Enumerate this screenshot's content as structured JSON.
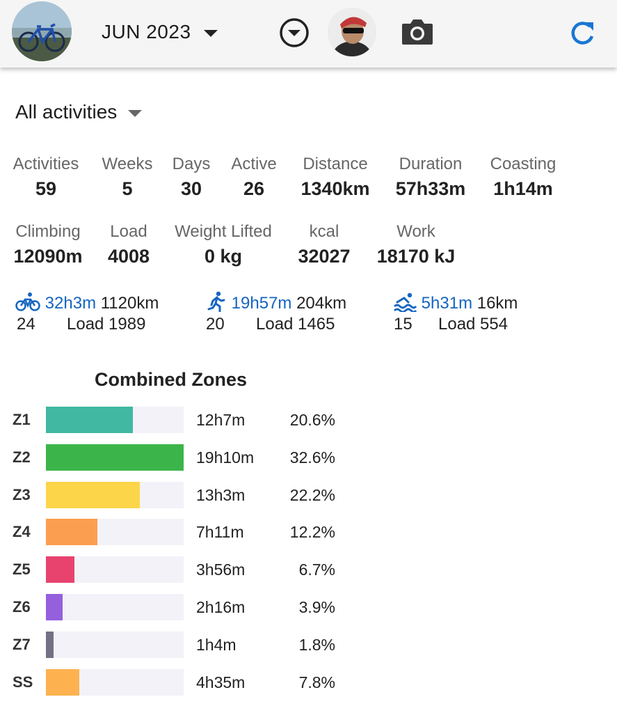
{
  "header": {
    "month_label": "JUN 2023"
  },
  "filter": {
    "label": "All activities"
  },
  "stats_row1": [
    {
      "label": "Activities",
      "value": "59"
    },
    {
      "label": "Weeks",
      "value": "5"
    },
    {
      "label": "Days",
      "value": "30"
    },
    {
      "label": "Active",
      "value": "26"
    },
    {
      "label": "Distance",
      "value": "1340km"
    },
    {
      "label": "Duration",
      "value": "57h33m"
    },
    {
      "label": "Coasting",
      "value": "1h14m"
    }
  ],
  "stats_row2": [
    {
      "label": "Climbing",
      "value": "12090m"
    },
    {
      "label": "Load",
      "value": "4008"
    },
    {
      "label": "Weight Lifted",
      "value": "0 kg"
    },
    {
      "label": "kcal",
      "value": "32027"
    },
    {
      "label": "Work",
      "value": "18170 kJ"
    }
  ],
  "sports": [
    {
      "icon": "bike-icon",
      "duration": "32h3m",
      "distance": "1120km",
      "count": "24",
      "load": "Load 1989"
    },
    {
      "icon": "run-icon",
      "duration": "19h57m",
      "distance": "204km",
      "count": "20",
      "load": "Load 1465"
    },
    {
      "icon": "swim-icon",
      "duration": "5h31m",
      "distance": "16km",
      "count": "15",
      "load": "Load 554"
    }
  ],
  "zones": {
    "title": "Combined Zones",
    "items": [
      {
        "label": "Z1",
        "time": "12h7m",
        "pct": "20.6%",
        "fraction": 0.632,
        "color": "#40b8a2"
      },
      {
        "label": "Z2",
        "time": "19h10m",
        "pct": "32.6%",
        "fraction": 1.0,
        "color": "#3bb54a"
      },
      {
        "label": "Z3",
        "time": "13h3m",
        "pct": "22.2%",
        "fraction": 0.681,
        "color": "#fdd549"
      },
      {
        "label": "Z4",
        "time": "7h11m",
        "pct": "12.2%",
        "fraction": 0.374,
        "color": "#fc9e4f"
      },
      {
        "label": "Z5",
        "time": "3h56m",
        "pct": "6.7%",
        "fraction": 0.206,
        "color": "#e8436f"
      },
      {
        "label": "Z6",
        "time": "2h16m",
        "pct": "3.9%",
        "fraction": 0.12,
        "color": "#9460dd"
      },
      {
        "label": "Z7",
        "time": "1h4m",
        "pct": "1.8%",
        "fraction": 0.055,
        "color": "#757084"
      },
      {
        "label": "SS",
        "time": "4h35m",
        "pct": "7.8%",
        "fraction": 0.24,
        "color": "#fdb24f"
      }
    ]
  }
}
